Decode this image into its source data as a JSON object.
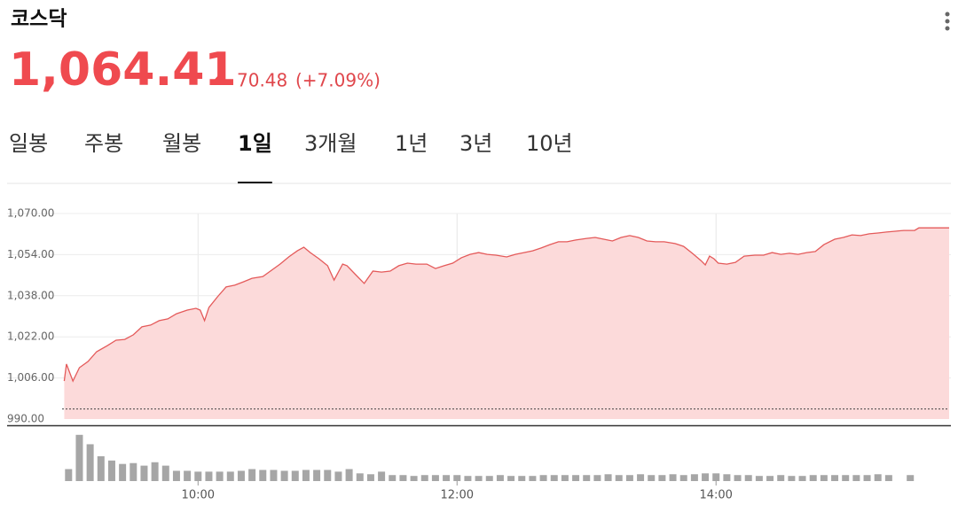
{
  "header": {
    "title": "코스닥",
    "price": "1,064.41",
    "change": "70.48",
    "change_pct": "(+7.09%)"
  },
  "tabs": [
    "일봉",
    "주봉",
    "월봉",
    "1일",
    "3개월",
    "1년",
    "3년",
    "10년"
  ],
  "active_tab": 3,
  "chart_data": [
    {
      "type": "area",
      "color": "#e45a5a",
      "fill": "#fcdada",
      "grid": true,
      "reference_line": 993.93,
      "x": [
        538,
        539,
        542,
        545,
        549,
        553,
        558,
        562,
        566,
        570,
        574,
        578,
        582,
        586,
        590,
        595,
        599,
        601,
        603,
        605,
        609,
        613,
        617,
        621,
        625,
        630,
        634,
        638,
        642,
        646,
        649,
        652,
        656,
        660,
        663,
        667,
        669,
        673,
        677,
        681,
        685,
        689,
        693,
        697,
        701,
        706,
        710,
        714,
        718,
        722,
        726,
        730,
        734,
        738,
        743,
        747,
        751,
        755,
        759,
        763,
        767,
        771,
        775,
        780,
        784,
        788,
        792,
        796,
        800,
        804,
        808,
        812,
        816,
        821,
        825,
        829,
        833,
        835,
        837,
        839,
        841,
        845,
        849,
        853,
        858,
        862,
        866,
        870,
        874,
        878,
        882,
        886,
        890,
        895,
        899,
        903,
        907,
        911,
        915,
        919,
        923,
        927,
        932,
        934,
        948
      ],
      "values": [
        1004.8,
        1011.4,
        1004.8,
        1010,
        1012.4,
        1016.2,
        1018.6,
        1020.7,
        1021,
        1022.8,
        1025.9,
        1026.6,
        1028.3,
        1029,
        1031,
        1032.4,
        1033.1,
        1032.4,
        1028.3,
        1033.4,
        1037.6,
        1041.4,
        1042.1,
        1043.4,
        1044.8,
        1045.5,
        1047.9,
        1050.3,
        1053.1,
        1055.5,
        1056.9,
        1054.8,
        1052.4,
        1049.7,
        1044.1,
        1050.3,
        1049.7,
        1046.2,
        1042.8,
        1047.6,
        1047.2,
        1047.6,
        1049.7,
        1050.7,
        1050.3,
        1050.3,
        1048.6,
        1049.7,
        1050.7,
        1052.8,
        1054.1,
        1054.8,
        1054.1,
        1053.8,
        1053.1,
        1054.1,
        1054.8,
        1055.5,
        1056.6,
        1057.9,
        1059,
        1059,
        1059.7,
        1060.3,
        1060.7,
        1060,
        1059.3,
        1060.7,
        1061.4,
        1060.7,
        1059.3,
        1059,
        1059,
        1058.3,
        1057.2,
        1054.5,
        1051.7,
        1050,
        1053.4,
        1052.4,
        1050.7,
        1050.3,
        1051,
        1053.4,
        1053.8,
        1053.8,
        1054.8,
        1054.1,
        1054.5,
        1054.1,
        1054.8,
        1055.2,
        1057.9,
        1060,
        1060.7,
        1061.7,
        1061.4,
        1062.1,
        1062.4,
        1062.8,
        1063.1,
        1063.4,
        1063.4,
        1064.4,
        1064.4
      ],
      "xlim": [
        537,
        948
      ],
      "ylim": [
        990,
        1070
      ],
      "yticks": [
        {
          "value": 990,
          "label": "990.00"
        },
        {
          "value": 1006,
          "label": "1,006.00"
        },
        {
          "value": 1022,
          "label": "1,022.00"
        },
        {
          "value": 1038,
          "label": "1,038.00"
        },
        {
          "value": 1054,
          "label": "1,054.00"
        },
        {
          "value": 1070,
          "label": "1,070.00"
        }
      ]
    },
    {
      "type": "bar",
      "color": "#a6a6a6",
      "x": [
        540,
        545,
        550,
        555,
        560,
        565,
        570,
        575,
        580,
        585,
        590,
        595,
        600,
        605,
        610,
        615,
        620,
        625,
        630,
        635,
        640,
        645,
        650,
        655,
        660,
        665,
        670,
        675,
        680,
        685,
        690,
        695,
        700,
        705,
        710,
        715,
        720,
        725,
        730,
        735,
        740,
        745,
        750,
        755,
        760,
        765,
        770,
        775,
        780,
        785,
        790,
        795,
        800,
        805,
        810,
        815,
        820,
        825,
        830,
        835,
        840,
        845,
        850,
        855,
        860,
        865,
        870,
        875,
        880,
        885,
        890,
        895,
        900,
        905,
        910,
        915,
        920,
        930
      ],
      "values": [
        14,
        54,
        43,
        29,
        24,
        20,
        21,
        18,
        22,
        18,
        12,
        12,
        11,
        11,
        11,
        11,
        12,
        14,
        13,
        13,
        12,
        12,
        13,
        13,
        13,
        11,
        14,
        9,
        8,
        11,
        7,
        7,
        6,
        7,
        7,
        7,
        7,
        6,
        6,
        6,
        7,
        6,
        6,
        6,
        7,
        7,
        7,
        7,
        7,
        7,
        8,
        7,
        7,
        8,
        7,
        7,
        8,
        7,
        8,
        9,
        9,
        8,
        7,
        7,
        6,
        6,
        7,
        6,
        6,
        7,
        7,
        7,
        7,
        7,
        7,
        8,
        7,
        7
      ],
      "xlim": [
        537,
        948
      ],
      "ylim": [
        0,
        60
      ],
      "xticks": [
        {
          "value": 600,
          "label": "10:00"
        },
        {
          "value": 720,
          "label": "12:00"
        },
        {
          "value": 840,
          "label": "14:00"
        }
      ]
    }
  ]
}
